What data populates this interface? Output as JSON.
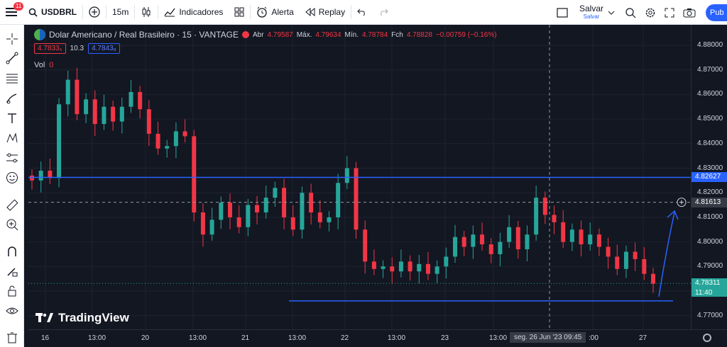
{
  "topbar": {
    "notif_count": "11",
    "symbol": "USDBRL",
    "interval": "15m",
    "indicators_label": "Indicadores",
    "alert_label": "Alerta",
    "replay_label": "Replay",
    "save_label": "Salvar",
    "save_sub": "Salvar",
    "publish_label": "Pub"
  },
  "legend": {
    "title": "Dolar Americano / Real Brasileiro · 15 · VANTAGE",
    "open_k": "Abr",
    "open_v": "4.79587",
    "high_k": "Máx.",
    "high_v": "4.79634",
    "low_k": "Mín.",
    "low_v": "4.78784",
    "close_k": "Fch",
    "close_v": "4.78828",
    "change": "−0.00759 (−0.16%)",
    "bid": "4.7833₅",
    "spread": "10.3",
    "ask": "4.7843₈",
    "vol_label": "Vol",
    "vol_value": "0"
  },
  "watermark": "TradingView",
  "price_axis": {
    "ticks": [
      "4.88000",
      "4.87000",
      "4.86000",
      "4.85000",
      "4.84000",
      "4.83000",
      "4.82000",
      "4.81000",
      "4.80000",
      "4.79000",
      "4.78000",
      "4.77000"
    ],
    "line_label": "4.82627",
    "crosshair_label": "4.81613",
    "last_price": "4.78311",
    "last_time": "11:40"
  },
  "time_axis": {
    "ticks": [
      "16",
      "13:00",
      "20",
      "13:00",
      "21",
      "13:00",
      "22",
      "13:00",
      "23",
      "13:00",
      ":00",
      "27"
    ],
    "crosshair_label": "seg. 26 Jun '23   09:45"
  },
  "colors": {
    "up": "#26a69a",
    "down": "#f23645",
    "line": "#2962ff",
    "bg": "#131722"
  },
  "chart_data": {
    "type": "candlestick",
    "symbol": "USDBRL",
    "ylim": [
      4.765,
      4.886
    ],
    "horizontal_lines": [
      4.82627,
      4.776
    ],
    "crosshair_price": 4.81613,
    "close_series": [
      4.825,
      4.829,
      4.826,
      4.856,
      4.866,
      4.852,
      4.858,
      4.848,
      4.855,
      4.849,
      4.855,
      4.861,
      4.854,
      4.844,
      4.838,
      4.839,
      4.845,
      4.843,
      4.812,
      4.803,
      4.809,
      4.816,
      4.81,
      4.806,
      4.815,
      4.812,
      4.818,
      4.822,
      4.81,
      4.805,
      4.82,
      4.812,
      4.808,
      4.81,
      4.824,
      4.83,
      4.805,
      4.792,
      4.789,
      4.79,
      4.788,
      4.792,
      4.788,
      4.791,
      4.787,
      4.79,
      4.794,
      4.802,
      4.798,
      4.803,
      4.799,
      4.795,
      4.8,
      4.806,
      4.797,
      4.803,
      4.818,
      4.811,
      4.808,
      4.8,
      4.805,
      4.799,
      4.803,
      4.798,
      4.794,
      4.789,
      4.796,
      4.793,
      4.787,
      4.783
    ]
  }
}
